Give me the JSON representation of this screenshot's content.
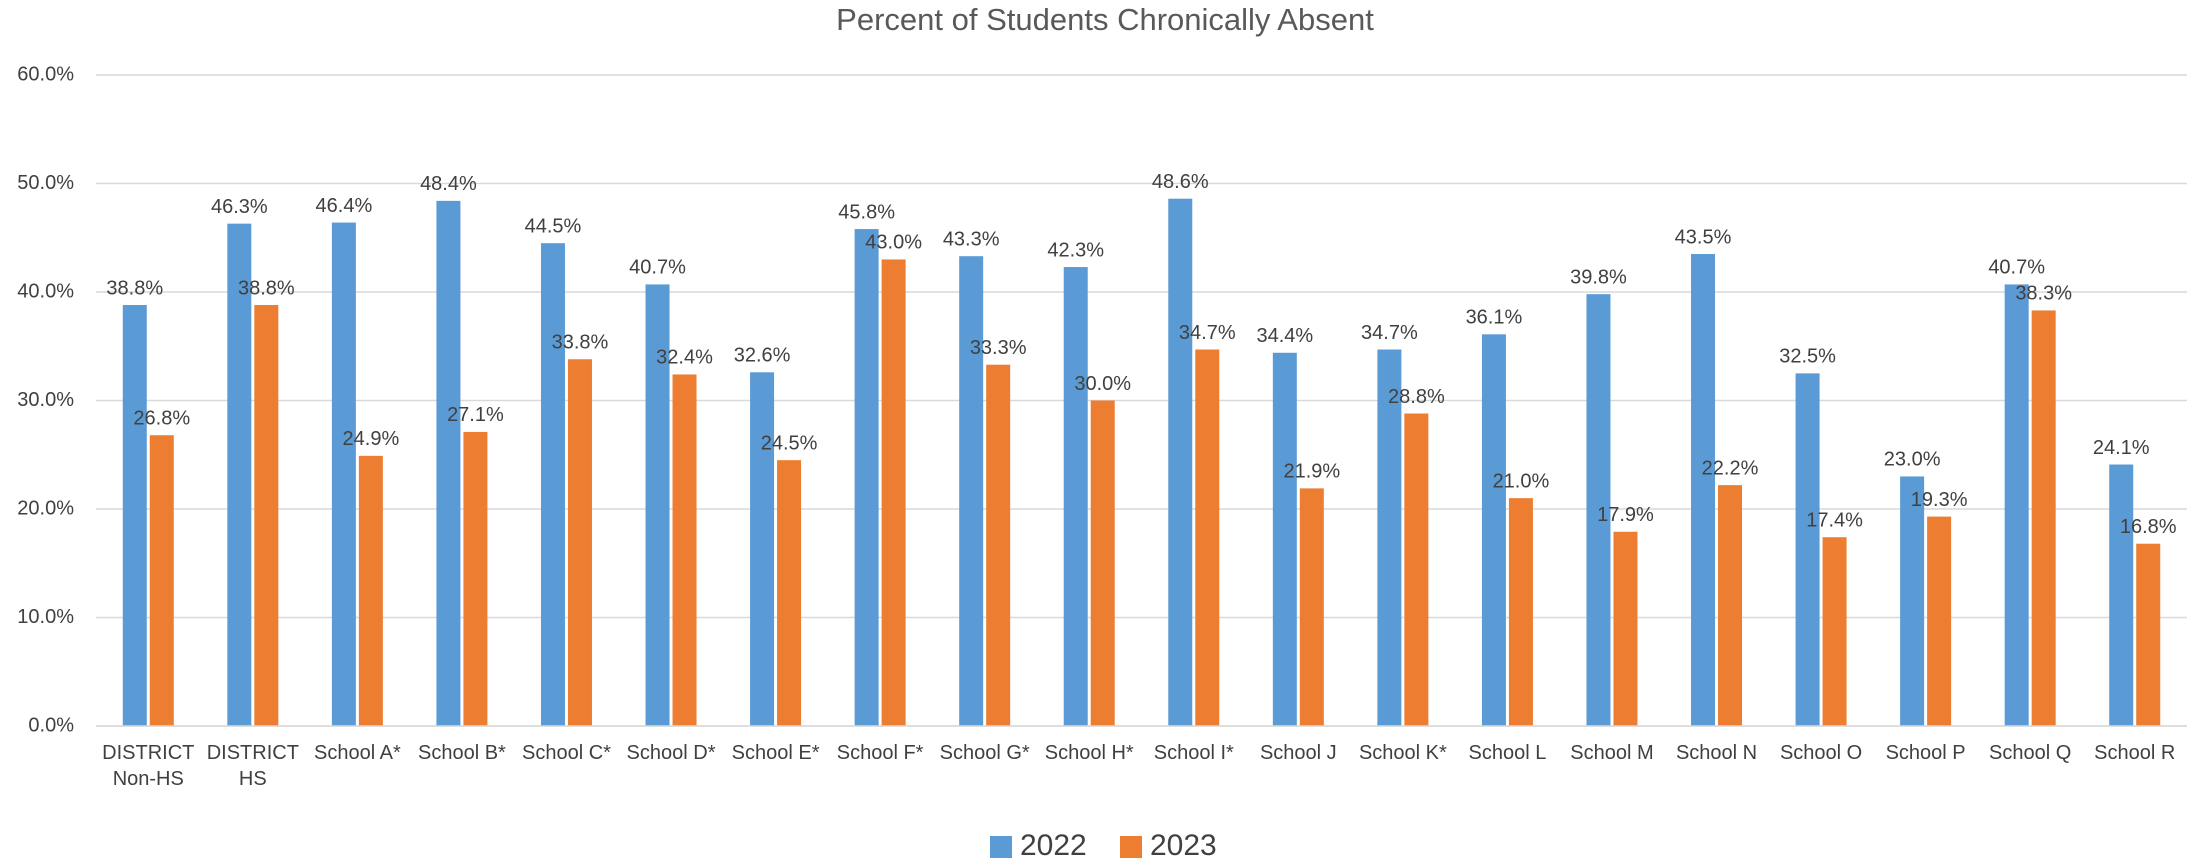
{
  "chart_data": {
    "type": "bar",
    "title": "Percent of Students Chronically Absent",
    "categories": [
      "DISTRICT Non-HS",
      "DISTRICT HS",
      "School A*",
      "School B*",
      "School C*",
      "School D*",
      "School E*",
      "School F*",
      "School G*",
      "School H*",
      "School I*",
      "School J",
      "School K*",
      "School L",
      "School M",
      "School N",
      "School O",
      "School P",
      "School Q",
      "School R"
    ],
    "series": [
      {
        "name": "2022",
        "color": "#5b9bd5",
        "values": [
          38.8,
          46.3,
          46.4,
          48.4,
          44.5,
          40.7,
          32.6,
          45.8,
          43.3,
          42.3,
          48.6,
          34.4,
          34.7,
          36.1,
          39.8,
          43.5,
          32.5,
          23.0,
          40.7,
          24.1
        ],
        "value_labels": [
          "38.8%",
          "46.3%",
          "46.4%",
          "48.4%",
          "44.5%",
          "40.7%",
          "32.6%",
          "45.8%",
          "43.3%",
          "42.3%",
          "48.6%",
          "34.4%",
          "34.7%",
          "36.1%",
          "39.8%",
          "43.5%",
          "32.5%",
          "23.0%",
          "40.7%",
          "24.1%"
        ]
      },
      {
        "name": "2023",
        "color": "#ed7d31",
        "values": [
          26.8,
          38.8,
          24.9,
          27.1,
          33.8,
          32.4,
          24.5,
          43.0,
          33.3,
          30.0,
          34.7,
          21.9,
          28.8,
          21.0,
          17.9,
          22.2,
          17.4,
          19.3,
          38.3,
          16.8
        ],
        "value_labels": [
          "26.8%",
          "38.8%",
          "24.9%",
          "27.1%",
          "33.8%",
          "32.4%",
          "24.5%",
          "43.0%",
          "33.3%",
          "30.0%",
          "34.7%",
          "21.9%",
          "28.8%",
          "21.0%",
          "17.9%",
          "22.2%",
          "17.4%",
          "19.3%",
          "38.3%",
          "16.8%"
        ]
      }
    ],
    "ylim": [
      0,
      60
    ],
    "yticks": [
      {
        "value": 0,
        "label": "0.0%"
      },
      {
        "value": 10,
        "label": "10.0%"
      },
      {
        "value": 20,
        "label": "20.0%"
      },
      {
        "value": 30,
        "label": "30.0%"
      },
      {
        "value": 40,
        "label": "40.0%"
      },
      {
        "value": 50,
        "label": "50.0%"
      },
      {
        "value": 60,
        "label": "60.0%"
      }
    ],
    "grid": true,
    "legend": "bottom"
  }
}
